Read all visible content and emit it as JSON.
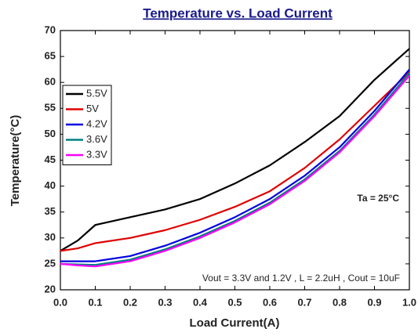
{
  "chart_data": {
    "type": "line",
    "title": "Temperature vs. Load Current",
    "x_label": "Load Current(A)",
    "y_label": "Temperature(°C)",
    "annotations": [
      "Ta = 25°C",
      "Vout = 3.3V and 1.2V , L = 2.2uH , Cout = 10uF"
    ],
    "x": [
      0,
      0.05,
      0.1,
      0.2,
      0.3,
      0.4,
      0.5,
      0.6,
      0.7,
      0.8,
      0.9,
      1.0
    ],
    "series": [
      {
        "name": "5.5V",
        "color": "#000000",
        "values": [
          27.5,
          29.5,
          32.5,
          34,
          35.5,
          37.5,
          40.5,
          44,
          48.5,
          53.5,
          60.5,
          66.5
        ]
      },
      {
        "name": "5V",
        "color": "#e00000",
        "values": [
          27.5,
          28,
          29,
          30,
          31.5,
          33.5,
          36,
          39,
          43.5,
          49,
          55.5,
          62
        ]
      },
      {
        "name": "4.2V",
        "color": "#0000e0",
        "values": [
          25.5,
          25.5,
          25.5,
          26.5,
          28.5,
          31,
          34,
          37.5,
          42,
          47.5,
          54.5,
          62.5
        ]
      },
      {
        "name": "3.6V",
        "color": "#008080",
        "values": [
          25,
          24.9,
          24.8,
          25.8,
          27.8,
          30.3,
          33.3,
          36.8,
          41.3,
          46.8,
          53.8,
          61.8
        ]
      },
      {
        "name": "3.3V",
        "color": "#ff00ff",
        "values": [
          25,
          24.7,
          24.5,
          25.5,
          27.5,
          30,
          33,
          36.5,
          41,
          46.5,
          53.5,
          61.3
        ]
      }
    ],
    "xlim": [
      0,
      1
    ],
    "xticks": [
      {
        "value": 0,
        "label": "0.0"
      },
      0.1,
      0.2,
      0.3,
      0.4,
      0.5,
      0.6,
      0.7,
      0.8,
      0.9,
      {
        "value": 1,
        "label": "1.0"
      }
    ],
    "ylim": [
      20,
      70
    ],
    "yticks": [
      20,
      25,
      30,
      35,
      40,
      45,
      50,
      55,
      60,
      65,
      70
    ],
    "grid": false,
    "legend": "upper-left"
  }
}
